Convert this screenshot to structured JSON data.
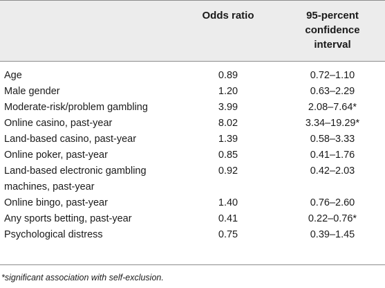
{
  "table": {
    "headers": {
      "label": "",
      "odds_ratio": "Odds ratio",
      "ci": "95-percent\nconfidence\ninterval"
    },
    "rows": [
      {
        "label": "Age",
        "odds_ratio": "0.89",
        "ci": "0.72–1.10"
      },
      {
        "label": "Male gender",
        "odds_ratio": "1.20",
        "ci": "0.63–2.29"
      },
      {
        "label": "Moderate-risk/problem gambling",
        "odds_ratio": "3.99",
        "ci": "2.08–7.64*"
      },
      {
        "label": "Online casino, past-year",
        "odds_ratio": "8.02",
        "ci": "3.34–19.29*"
      },
      {
        "label": "Land-based casino, past-year",
        "odds_ratio": "1.39",
        "ci": "0.58–3.33"
      },
      {
        "label": "Online poker, past-year",
        "odds_ratio": "0.85",
        "ci": "0.41–1.76"
      },
      {
        "label": "Land-based electronic gambling\nmachines, past-year",
        "odds_ratio": "0.92",
        "ci": "0.42–2.03"
      },
      {
        "label": "Online bingo, past-year",
        "odds_ratio": "1.40",
        "ci": "0.76–2.60"
      },
      {
        "label": "Any sports betting, past-year",
        "odds_ratio": "0.41",
        "ci": "0.22–0.76*"
      },
      {
        "label": "Psychological distress",
        "odds_ratio": "0.75",
        "ci": "0.39–1.45"
      }
    ],
    "footnote": "*significant association with self-exclusion."
  }
}
